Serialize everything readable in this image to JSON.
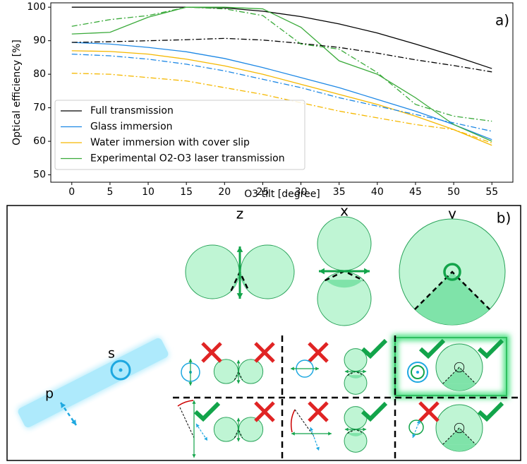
{
  "chart_data": {
    "type": "line",
    "panel_label": "a)",
    "xlabel": "O3 tilt [degree]",
    "ylabel": "Optical efficiency [%]",
    "x": [
      0,
      5,
      10,
      15,
      20,
      25,
      30,
      35,
      40,
      45,
      50,
      55
    ],
    "xlim": [
      -2.75,
      57.75
    ],
    "xticks": [
      0,
      5,
      10,
      15,
      20,
      25,
      30,
      35,
      40,
      45,
      50,
      55
    ],
    "ylim": [
      47.8,
      101.3
    ],
    "yticks": [
      50,
      60,
      70,
      80,
      90,
      100
    ],
    "legend": "lower left",
    "series": [
      {
        "name": "Full transmission",
        "color": "#000000",
        "dash": "solid",
        "values": [
          100,
          100,
          100,
          100,
          99.8,
          98.8,
          97.2,
          95,
          92.3,
          89,
          85.5,
          81.7
        ]
      },
      {
        "name": "Glass immersion",
        "color": "#1e88e5",
        "dash": "solid",
        "values": [
          89.5,
          89,
          88,
          86.7,
          84.7,
          82,
          79,
          76,
          72.5,
          69,
          65,
          60.5
        ]
      },
      {
        "name": "Water immersion with cover slip",
        "color": "#f5b800",
        "dash": "solid",
        "values": [
          87,
          86.8,
          86,
          84.5,
          82.5,
          80,
          77,
          74,
          71,
          67.5,
          63.5,
          58.8
        ]
      },
      {
        "name": "Experimental O2-O3 laser transmission",
        "color": "#3aaa3a",
        "dash": "solid",
        "values": [
          92,
          92.5,
          97,
          100,
          100,
          99.5,
          94,
          84,
          80,
          73,
          65,
          60
        ]
      },
      {
        "color": "#000000",
        "dash": "dashdot",
        "values": [
          89.5,
          89.7,
          90,
          90.3,
          90.7,
          90.2,
          89.2,
          88,
          86.3,
          84.3,
          82.6,
          80.7
        ]
      },
      {
        "color": "#1e88e5",
        "dash": "dashdot",
        "values": [
          86,
          85.5,
          84.5,
          83,
          81,
          78.5,
          76,
          73,
          70.5,
          68,
          65.5,
          63
        ]
      },
      {
        "color": "#f5b800",
        "dash": "dashdot",
        "values": [
          80.3,
          80,
          79,
          78,
          76,
          74,
          71.5,
          69,
          67,
          65,
          63.5,
          59.5
        ]
      },
      {
        "color": "#3aaa3a",
        "dash": "dashdot",
        "values": [
          94.3,
          96.3,
          97.5,
          100,
          99.5,
          97.5,
          89,
          87.5,
          80.5,
          71,
          67.5,
          66
        ]
      }
    ]
  },
  "diagram": {
    "panel_label": "b)",
    "columns": [
      "z",
      "x",
      "y"
    ],
    "beam_labels": [
      "s",
      "p"
    ]
  }
}
